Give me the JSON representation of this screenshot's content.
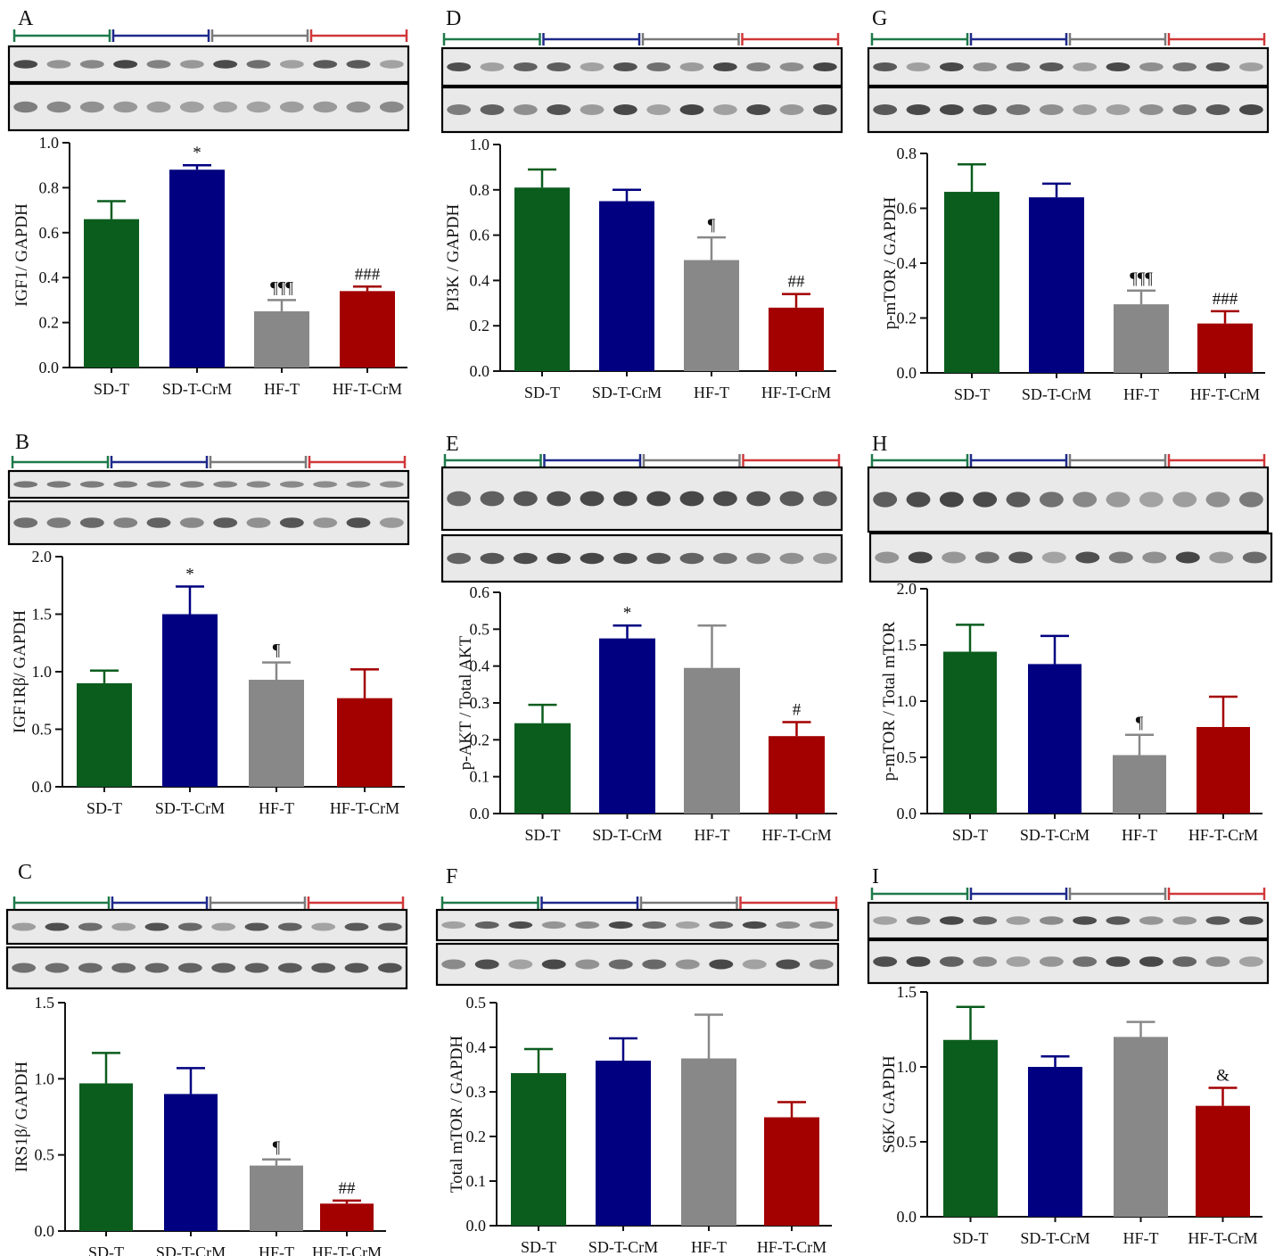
{
  "colors": {
    "SD-T": "#0b5d1e",
    "SD-T-CrM": "#000080",
    "HF-T": "#888888",
    "HF-T-CrM": "#a30000",
    "axis": "#111111",
    "lane_SD-T": "#1e7a4a",
    "lane_SD-T-CrM": "#1f2a8a",
    "lane_HF-T": "#7a7a7a",
    "lane_HF-T-CrM": "#d0383a"
  },
  "chart_data": [
    {
      "panel": "A",
      "type": "bar",
      "categories": [
        "SD-T",
        "SD-T-CrM",
        "HF-T",
        "HF-T-CrM"
      ],
      "values": [
        0.66,
        0.88,
        0.25,
        0.34
      ],
      "errors": [
        0.08,
        0.02,
        0.05,
        0.02
      ],
      "annotations": [
        "",
        "*",
        "¶¶¶",
        "###"
      ],
      "ylabel": "IGF1/ GAPDH",
      "ylim": [
        0,
        1.0
      ],
      "yticks": [
        "0.0",
        "0.2",
        "0.4",
        "0.6",
        "0.8",
        "1.0"
      ],
      "blot_strips": 2
    },
    {
      "panel": "B",
      "type": "bar",
      "categories": [
        "SD-T",
        "SD-T-CrM",
        "HF-T",
        "HF-T-CrM"
      ],
      "values": [
        0.9,
        1.5,
        0.93,
        0.77
      ],
      "errors": [
        0.11,
        0.24,
        0.15,
        0.25
      ],
      "annotations": [
        "",
        "*",
        "¶",
        ""
      ],
      "ylabel": "IGF1Rβ/ GAPDH",
      "ylim": [
        0,
        2.0
      ],
      "yticks": [
        "0.0",
        "0.5",
        "1.0",
        "1.5",
        "2.0"
      ],
      "blot_strips": 2
    },
    {
      "panel": "C",
      "type": "bar",
      "categories": [
        "SD-T",
        "SD-T-CrM",
        "HF-T",
        "HF-T-CrM"
      ],
      "values": [
        0.97,
        0.9,
        0.43,
        0.18
      ],
      "errors": [
        0.2,
        0.17,
        0.04,
        0.02
      ],
      "annotations": [
        "",
        "",
        "¶",
        "##"
      ],
      "ylabel": "IRS1β/ GAPDH",
      "ylim": [
        0,
        1.5
      ],
      "yticks": [
        "0.0",
        "0.5",
        "1.0",
        "1.5"
      ],
      "blot_strips": 2
    },
    {
      "panel": "D",
      "type": "bar",
      "categories": [
        "SD-T",
        "SD-T-CrM",
        "HF-T",
        "HF-T-CrM"
      ],
      "values": [
        0.81,
        0.75,
        0.49,
        0.28
      ],
      "errors": [
        0.08,
        0.05,
        0.1,
        0.06
      ],
      "annotations": [
        "",
        "",
        "¶",
        "##"
      ],
      "ylabel": "PI3K / GAPDH",
      "ylim": [
        0,
        1.0
      ],
      "yticks": [
        "0.0",
        "0.2",
        "0.4",
        "0.6",
        "0.8",
        "1.0"
      ],
      "blot_strips": 2
    },
    {
      "panel": "E",
      "type": "bar",
      "categories": [
        "SD-T",
        "SD-T-CrM",
        "HF-T",
        "HF-T-CrM"
      ],
      "values": [
        0.245,
        0.475,
        0.395,
        0.21
      ],
      "errors": [
        0.05,
        0.035,
        0.115,
        0.038
      ],
      "annotations": [
        "",
        "*",
        "",
        "#"
      ],
      "ylabel": "p-AKT / Total AKT",
      "ylim": [
        0,
        0.6
      ],
      "yticks": [
        "0.0",
        "0.1",
        "0.2",
        "0.3",
        "0.4",
        "0.5",
        "0.6"
      ],
      "blot_strips": 3
    },
    {
      "panel": "F",
      "type": "bar",
      "categories": [
        "SD-T",
        "SD-T-CrM",
        "HF-T",
        "HF-T-CrM"
      ],
      "values": [
        0.342,
        0.37,
        0.375,
        0.243
      ],
      "errors": [
        0.054,
        0.05,
        0.098,
        0.034
      ],
      "annotations": [
        "",
        "",
        "",
        ""
      ],
      "ylabel": "Total mTOR / GAPDH",
      "ylim": [
        0,
        0.5
      ],
      "yticks": [
        "0.0",
        "0.1",
        "0.2",
        "0.3",
        "0.4",
        "0.5"
      ],
      "blot_strips": 2
    },
    {
      "panel": "G",
      "type": "bar",
      "categories": [
        "SD-T",
        "SD-T-CrM",
        "HF-T",
        "HF-T-CrM"
      ],
      "values": [
        0.66,
        0.64,
        0.25,
        0.18
      ],
      "errors": [
        0.1,
        0.05,
        0.05,
        0.045
      ],
      "annotations": [
        "",
        "",
        "¶¶¶",
        "###"
      ],
      "ylabel": "p-mTOR / GAPDH",
      "ylim": [
        0,
        0.8
      ],
      "yticks": [
        "0.0",
        "0.2",
        "0.4",
        "0.6",
        "0.8"
      ],
      "blot_strips": 2
    },
    {
      "panel": "H",
      "type": "bar",
      "categories": [
        "SD-T",
        "SD-T-CrM",
        "HF-T",
        "HF-T-CrM"
      ],
      "values": [
        1.44,
        1.33,
        0.52,
        0.77
      ],
      "errors": [
        0.24,
        0.25,
        0.18,
        0.27
      ],
      "annotations": [
        "",
        "",
        "¶",
        ""
      ],
      "ylabel": "p-mTOR / Total mTOR",
      "ylim": [
        0,
        2.0
      ],
      "yticks": [
        "0.0",
        "0.5",
        "1.0",
        "1.5",
        "2.0"
      ],
      "blot_strips": 3
    },
    {
      "panel": "I",
      "type": "bar",
      "categories": [
        "SD-T",
        "SD-T-CrM",
        "HF-T",
        "HF-T-CrM"
      ],
      "values": [
        1.18,
        1.0,
        1.2,
        0.74
      ],
      "errors": [
        0.22,
        0.07,
        0.1,
        0.12
      ],
      "annotations": [
        "",
        "",
        "",
        "&"
      ],
      "ylabel": "S6K/ GAPDH",
      "ylim": [
        0,
        1.5
      ],
      "yticks": [
        "0.0",
        "0.5",
        "1.0",
        "1.5"
      ],
      "blot_strips": 2
    }
  ]
}
